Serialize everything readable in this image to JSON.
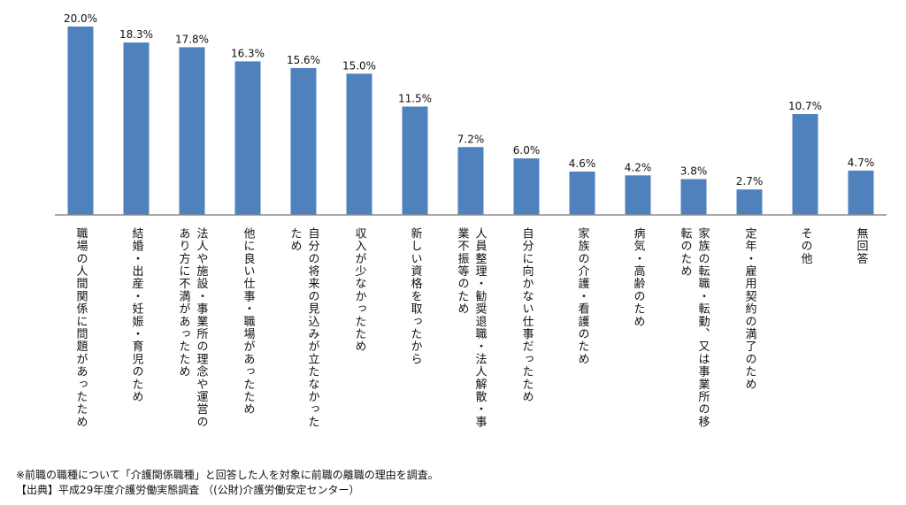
{
  "chart_data": {
    "type": "bar",
    "categories": [
      "職場の人間関係に問題があったため",
      "結婚・出産・妊娠・育児のため",
      "法人や施設・事業所の理念や運営のあり方に不満があったため",
      "他に良い仕事・職場があったため",
      "自分の将来の見込みが立たなかったため",
      "収入が少なかったため",
      "新しい資格を取ったから",
      "人員整理・勧奨退職・法人解散・事業不振等のため",
      "自分に向かない仕事だったため",
      "家族の介護・看護のため",
      "病気・高齢のため",
      "家族の転職・転勤、又は事業所の移転のため",
      "定年・雇用契約の満了のため",
      "その他",
      "無回答"
    ],
    "category_lines": [
      [
        "職場の人間関係に問題があったため"
      ],
      [
        "結婚・出産・妊娠・育児のため"
      ],
      [
        "法人や施設・事業所の理念や運営の",
        "あり方に不満があったため"
      ],
      [
        "他に良い仕事・職場があったため"
      ],
      [
        "自分の将来の見込みが立たなかった",
        "ため"
      ],
      [
        "収入が少なかったため"
      ],
      [
        "新しい資格を取ったから"
      ],
      [
        "人員整理・勧奨退職・法人解散・事",
        "業不振等のため"
      ],
      [
        "自分に向かない仕事だったため"
      ],
      [
        "家族の介護・看護のため"
      ],
      [
        "病気・高齢のため"
      ],
      [
        "家族の転職・転勤、又は事業所の移",
        "転のため"
      ],
      [
        "定年・雇用契約の満了のため"
      ],
      [
        "その他"
      ],
      [
        "無回答"
      ]
    ],
    "values": [
      20.0,
      18.3,
      17.8,
      16.3,
      15.6,
      15.0,
      11.5,
      7.2,
      6.0,
      4.6,
      4.2,
      3.8,
      2.7,
      10.7,
      4.7
    ],
    "value_labels": [
      "20.0%",
      "18.3%",
      "17.8%",
      "16.3%",
      "15.6%",
      "15.0%",
      "11.5%",
      "7.2%",
      "6.0%",
      "4.6%",
      "4.2%",
      "3.8%",
      "2.7%",
      "10.7%",
      "4.7%"
    ],
    "unit": "%",
    "ylim": [
      0,
      20
    ],
    "bar_color": "#4f81bd",
    "axis_color": "#8c8c8c",
    "grid": false,
    "legend": "none",
    "title": "",
    "xlabel": "",
    "ylabel": ""
  },
  "notes": {
    "footnote": "※前職の職種について「介護関係職種」と回答した人を対象に前職の離職の理由を調査。",
    "source": "【出典】平成29年度介護労働実態調査 （(公財)介護労働安定センター）"
  }
}
